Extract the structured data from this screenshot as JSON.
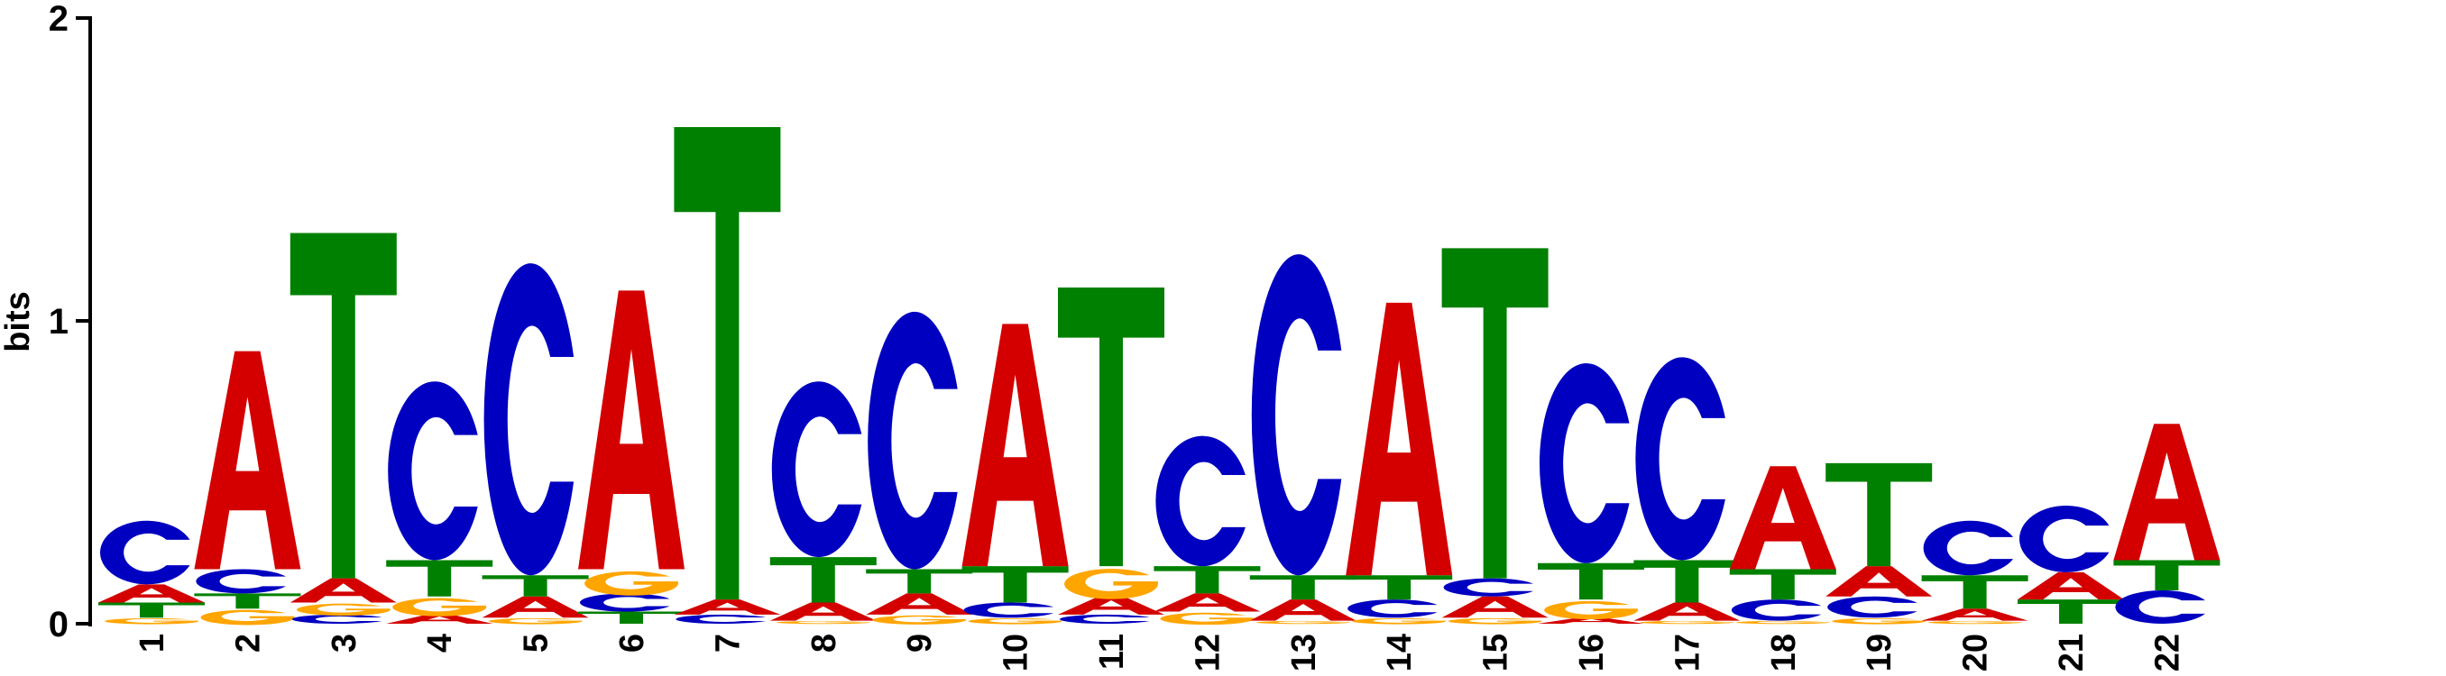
{
  "chart_data": {
    "type": "sequence-logo",
    "ylabel": "bits",
    "ylim": [
      0,
      2
    ],
    "yticks": [
      "0",
      "1",
      "2"
    ],
    "colors": {
      "A": "#d40000",
      "C": "#0000c0",
      "G": "#ffa500",
      "T": "#008000"
    },
    "positions": [
      {
        "label": "1",
        "letters": [
          [
            "G",
            0.02
          ],
          [
            "T",
            0.05
          ],
          [
            "A",
            0.06
          ],
          [
            "C",
            0.21
          ]
        ]
      },
      {
        "label": "2",
        "letters": [
          [
            "G",
            0.05
          ],
          [
            "T",
            0.05
          ],
          [
            "C",
            0.08
          ],
          [
            "A",
            0.72
          ]
        ]
      },
      {
        "label": "3",
        "letters": [
          [
            "C",
            0.03
          ],
          [
            "G",
            0.04
          ],
          [
            "A",
            0.08
          ],
          [
            "T",
            1.14
          ]
        ]
      },
      {
        "label": "4",
        "letters": [
          [
            "A",
            0.03
          ],
          [
            "G",
            0.06
          ],
          [
            "T",
            0.12
          ],
          [
            "C",
            0.59
          ]
        ]
      },
      {
        "label": "5",
        "letters": [
          [
            "G",
            0.02
          ],
          [
            "A",
            0.07
          ],
          [
            "T",
            0.07
          ],
          [
            "C",
            1.03
          ]
        ]
      },
      {
        "label": "6",
        "letters": [
          [
            "T",
            0.04
          ],
          [
            "C",
            0.06
          ],
          [
            "G",
            0.08
          ],
          [
            "A",
            0.92
          ]
        ]
      },
      {
        "label": "7",
        "letters": [
          [
            "C",
            0.03
          ],
          [
            "A",
            0.05
          ],
          [
            "T",
            1.56
          ]
        ]
      },
      {
        "label": "8",
        "letters": [
          [
            "G",
            0.01
          ],
          [
            "A",
            0.06
          ],
          [
            "T",
            0.15
          ],
          [
            "C",
            0.58
          ]
        ]
      },
      {
        "label": "9",
        "letters": [
          [
            "G",
            0.03
          ],
          [
            "A",
            0.07
          ],
          [
            "T",
            0.08
          ],
          [
            "C",
            0.85
          ]
        ]
      },
      {
        "label": "10",
        "letters": [
          [
            "G",
            0.02
          ],
          [
            "C",
            0.05
          ],
          [
            "T",
            0.12
          ],
          [
            "A",
            0.8
          ]
        ]
      },
      {
        "label": "11",
        "letters": [
          [
            "C",
            0.03
          ],
          [
            "A",
            0.06
          ],
          [
            "G",
            0.1
          ],
          [
            "T",
            0.92
          ]
        ]
      },
      {
        "label": "12",
        "letters": [
          [
            "G",
            0.04
          ],
          [
            "A",
            0.06
          ],
          [
            "T",
            0.09
          ],
          [
            "C",
            0.43
          ]
        ]
      },
      {
        "label": "13",
        "letters": [
          [
            "G",
            0.01
          ],
          [
            "A",
            0.07
          ],
          [
            "T",
            0.08
          ],
          [
            "C",
            1.06
          ]
        ]
      },
      {
        "label": "14",
        "letters": [
          [
            "G",
            0.02
          ],
          [
            "C",
            0.06
          ],
          [
            "T",
            0.08
          ],
          [
            "A",
            0.9
          ]
        ]
      },
      {
        "label": "15",
        "letters": [
          [
            "G",
            0.02
          ],
          [
            "A",
            0.07
          ],
          [
            "C",
            0.06
          ],
          [
            "T",
            1.09
          ]
        ]
      },
      {
        "label": "16",
        "letters": [
          [
            "A",
            0.02
          ],
          [
            "G",
            0.06
          ],
          [
            "T",
            0.12
          ],
          [
            "C",
            0.66
          ]
        ]
      },
      {
        "label": "17",
        "letters": [
          [
            "G",
            0.01
          ],
          [
            "A",
            0.06
          ],
          [
            "T",
            0.14
          ],
          [
            "C",
            0.67
          ]
        ]
      },
      {
        "label": "18",
        "letters": [
          [
            "G",
            0.01
          ],
          [
            "C",
            0.07
          ],
          [
            "T",
            0.1
          ],
          [
            "A",
            0.34
          ]
        ]
      },
      {
        "label": "19",
        "letters": [
          [
            "G",
            0.02
          ],
          [
            "C",
            0.07
          ],
          [
            "A",
            0.1
          ],
          [
            "T",
            0.34
          ]
        ]
      },
      {
        "label": "20",
        "letters": [
          [
            "G",
            0.01
          ],
          [
            "A",
            0.04
          ],
          [
            "T",
            0.11
          ],
          [
            "C",
            0.18
          ]
        ]
      },
      {
        "label": "21",
        "letters": [
          [
            "T",
            0.08
          ],
          [
            "A",
            0.09
          ],
          [
            "C",
            0.22
          ]
        ]
      },
      {
        "label": "22",
        "letters": [
          [
            "C",
            0.11
          ],
          [
            "T",
            0.1
          ],
          [
            "A",
            0.45
          ]
        ]
      }
    ]
  }
}
